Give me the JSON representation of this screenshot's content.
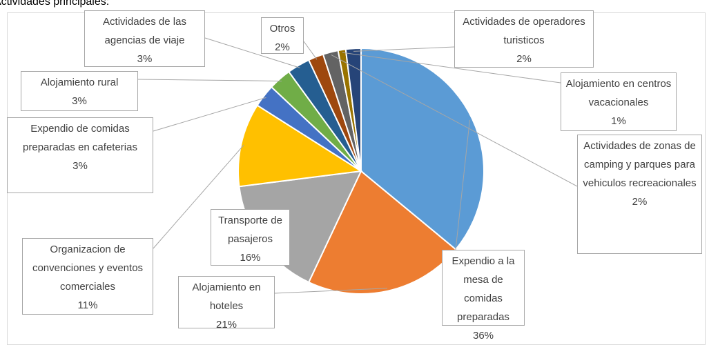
{
  "chart_data": {
    "type": "pie",
    "title": "Actividades principales:",
    "categories": [
      "Expendio a la mesa de comidas preparadas",
      "Alojamiento en hoteles",
      "Transporte de pasajeros",
      "Organizacion de convenciones y eventos comerciales",
      "Expendio de comidas preparadas en cafeterias",
      "Alojamiento rural",
      "Actividades de las agencias de viaje",
      "Otros",
      "Actividades de zonas de camping y parques para vehiculos recreacionales",
      "Alojamiento en centros vacacionales",
      "Actividades de operadores turisticos"
    ],
    "values": [
      36,
      21,
      16,
      11,
      3,
      3,
      3,
      2,
      2,
      1,
      2
    ],
    "value_labels": [
      "36%",
      "21%",
      "16%",
      "11%",
      "3%",
      "3%",
      "3%",
      "2%",
      "2%",
      "1%",
      "2%"
    ],
    "colors": [
      "#5b9bd5",
      "#ed7d31",
      "#a5a5a5",
      "#ffc000",
      "#4472c4",
      "#70ad47",
      "#255e91",
      "#9e480e",
      "#636363",
      "#997300",
      "#264478"
    ]
  }
}
